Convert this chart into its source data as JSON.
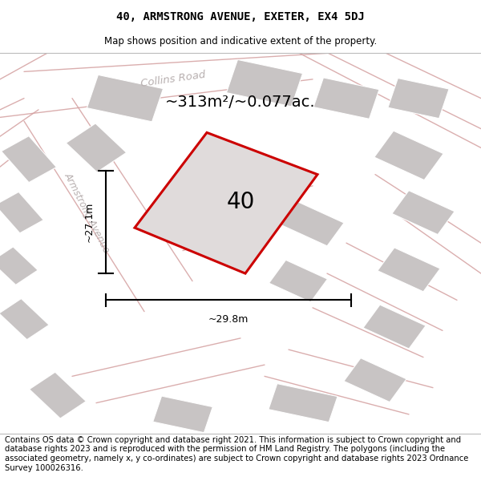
{
  "title_line1": "40, ARMSTRONG AVENUE, EXETER, EX4 5DJ",
  "title_line2": "Map shows position and indicative extent of the property.",
  "footer_text": "Contains OS data © Crown copyright and database right 2021. This information is subject to Crown copyright and database rights 2023 and is reproduced with the permission of HM Land Registry. The polygons (including the associated geometry, namely x, y co-ordinates) are subject to Crown copyright and database rights 2023 Ordnance Survey 100026316.",
  "area_label": "~313m²/~0.077ac.",
  "width_label": "~29.8m",
  "height_label": "~27.1m",
  "plot_number": "40",
  "map_bg": "#ede9e9",
  "plot_fill": "#e0dbdb",
  "plot_edge": "#cc0000",
  "road_color": "#d4a0a0",
  "building_color": "#c8c4c4",
  "title_fontsize": 10,
  "subtitle_fontsize": 8.5,
  "footer_fontsize": 7.2,
  "collins_road_label": "Collins Road",
  "armstrong_label": "Armstrong Avenue",
  "title_font": "DejaVu Sans Mono",
  "subtitle_font": "DejaVu Sans",
  "road_label_color": "#b8b0b0"
}
